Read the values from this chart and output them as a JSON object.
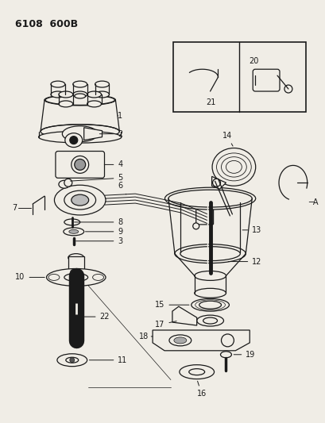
{
  "title": "6108 600B",
  "background_color": "#f0ede6",
  "line_color": "#1a1a1a",
  "text_color": "#1a1a1a",
  "fig_width": 4.1,
  "fig_height": 5.33,
  "dpi": 100
}
